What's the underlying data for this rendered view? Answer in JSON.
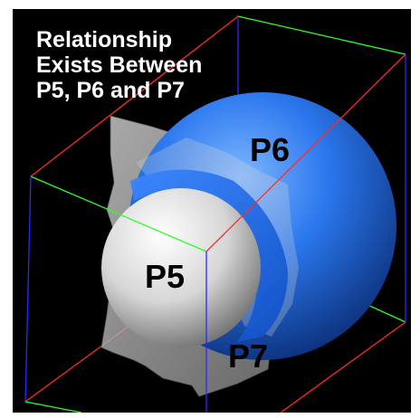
{
  "caption": {
    "line1": "Relationship",
    "line2": "Exists Between",
    "line3": "P5, P6 and P7"
  },
  "objects": {
    "p5": {
      "label": "P5",
      "color": "#e4e4e4"
    },
    "p6": {
      "label": "P6",
      "color": "#1f6fe0"
    },
    "p7": {
      "label": "P7",
      "color": "#9a9a9a"
    }
  },
  "colors": {
    "background": "#000000",
    "frame": "#ffffff",
    "axis_x": "#ff2a2a",
    "axis_y": "#2aff2a",
    "axis_z": "#2a2aff",
    "caption_text": "#ffffff",
    "label_text": "#000000"
  }
}
